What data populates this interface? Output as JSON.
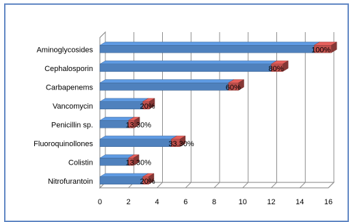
{
  "chart_data": {
    "type": "bar",
    "orientation": "horizontal",
    "style": "3d",
    "categories": [
      "Aminoglycosides",
      "Cephalosporin",
      "Carbapenems",
      "Vancomycin",
      "Penicillin sp.",
      "Fluoroquinollones",
      "Colistin",
      "Nitrofurantoin"
    ],
    "series": [
      {
        "values": [
          15,
          12,
          9,
          3,
          2,
          5,
          2,
          3
        ],
        "color": "#4f81bd"
      },
      {
        "values": [
          1.2,
          0.8,
          0.7,
          0.45,
          0.4,
          0.6,
          0.35,
          0.4
        ],
        "color": "#c0504d"
      }
    ],
    "data_labels": [
      "100%",
      "80%",
      "60%",
      "20%",
      "13.30%",
      "33.30%",
      "13.30%",
      "20%"
    ],
    "xlim": [
      0,
      16
    ],
    "xticks": [
      "0",
      "2",
      "4",
      "6",
      "8",
      "10",
      "12",
      "14",
      "16"
    ],
    "grid": true,
    "legend": "none",
    "title": "",
    "xlabel": "",
    "ylabel": ""
  }
}
